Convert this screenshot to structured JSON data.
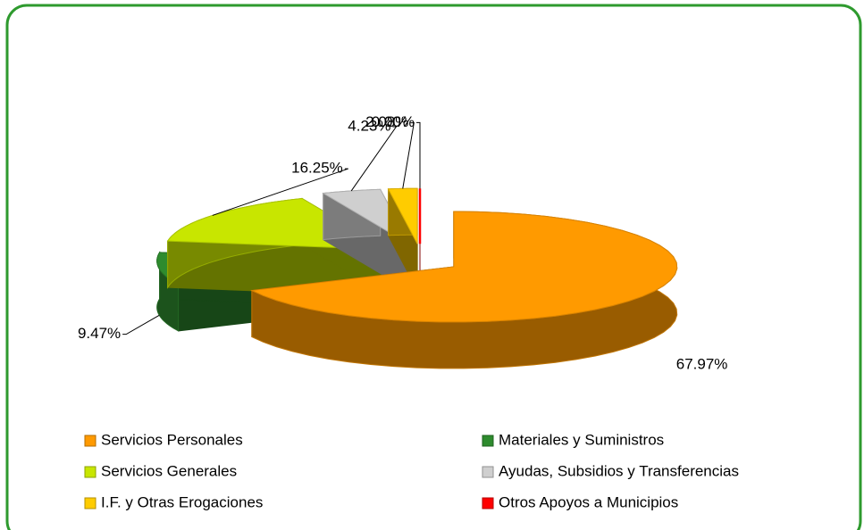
{
  "chart_data": {
    "type": "pie",
    "categories": [
      "Servicios Personales",
      "Materiales y Suministros",
      "Servicios Generales",
      "Ayudas, Subsidios y Transferencias",
      "I.F. y Otras Erogaciones",
      "Otros Apoyos a Municipios"
    ],
    "values": [
      67.97,
      9.47,
      16.25,
      4.23,
      2.08,
      0.0
    ],
    "value_labels": [
      "67.97%",
      "9.47%",
      "16.25%",
      "4.23%",
      "2.08%",
      "0.00%"
    ],
    "colors": [
      "#ff9a00",
      "#2e8b2e",
      "#c8e600",
      "#cfcfcf",
      "#ffcc00",
      "#ff0000"
    ],
    "legend": "bottom"
  }
}
